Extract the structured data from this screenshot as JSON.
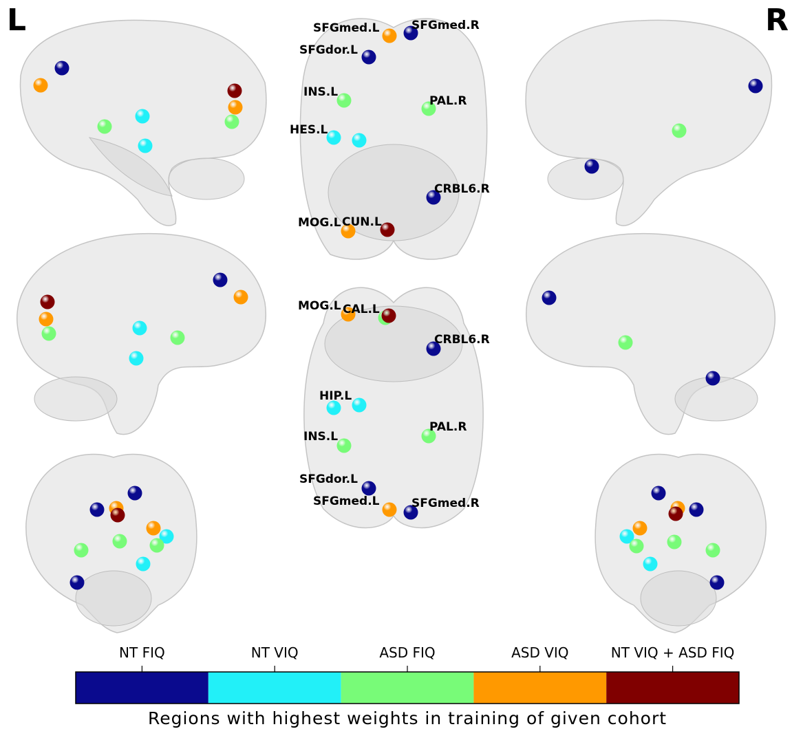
{
  "side_labels": {
    "left": "L",
    "right": "R"
  },
  "top_view": {
    "labels": [
      "SFGmed.L",
      "SFGmed.R",
      "SFGdor.L",
      "INS.L",
      "PAL.R",
      "HES.L",
      "CRBL6.R",
      "MOG.L",
      "CUN.L"
    ]
  },
  "bottom_view": {
    "labels": [
      "MOG.L",
      "CAL.L",
      "CRBL6.R",
      "HIP.L",
      "INS.L",
      "PAL.R",
      "SFGdor.L",
      "SFGmed.L",
      "SFGmed.R"
    ]
  },
  "colorbar": {
    "categories": [
      "NT FIQ",
      "NT VIQ",
      "ASD FIQ",
      "ASD VIQ",
      "NT VIQ +  ASD FIQ"
    ],
    "colors": [
      "#0a0a8e",
      "#22f0f8",
      "#78fb78",
      "#ff9900",
      "#800000"
    ],
    "label": "Regions with highest weights in training of given cohort"
  }
}
